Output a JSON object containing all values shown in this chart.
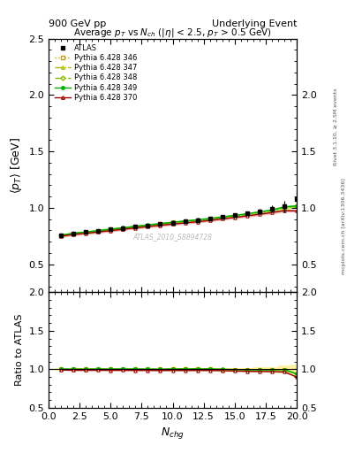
{
  "title_left": "900 GeV pp",
  "title_right": "Underlying Event",
  "main_title": "Average $p_T$ vs $N_{ch}$ ($|\\eta|$ < 2.5, $p_T$ > 0.5 GeV)",
  "xlabel": "$N_{chg}$",
  "ylabel_main": "$\\langle p_T \\rangle$ [GeV]",
  "ylabel_ratio": "Ratio to ATLAS",
  "watermark": "ATLAS_2010_S8894728",
  "right_label1": "Rivet 3.1.10, ≥ 2.5M events",
  "right_label2": "mcplots.cern.ch [arXiv:1306.3436]",
  "xlim": [
    0,
    20
  ],
  "ylim_main": [
    0.25,
    2.5
  ],
  "ylim_ratio": [
    0.5,
    2.0
  ],
  "yticks_main": [
    0.5,
    1.0,
    1.5,
    2.0,
    2.5
  ],
  "yticks_ratio": [
    0.5,
    1.0,
    1.5,
    2.0
  ],
  "nch": [
    1,
    2,
    3,
    4,
    5,
    6,
    7,
    8,
    9,
    10,
    11,
    12,
    13,
    14,
    15,
    16,
    17,
    18,
    19,
    20
  ],
  "atlas_data": [
    0.755,
    0.773,
    0.783,
    0.795,
    0.808,
    0.82,
    0.833,
    0.845,
    0.858,
    0.868,
    0.879,
    0.889,
    0.901,
    0.918,
    0.935,
    0.952,
    0.97,
    0.988,
    1.01,
    1.08
  ],
  "atlas_err": [
    0.012,
    0.009,
    0.008,
    0.007,
    0.007,
    0.007,
    0.007,
    0.007,
    0.008,
    0.008,
    0.009,
    0.01,
    0.011,
    0.013,
    0.015,
    0.018,
    0.023,
    0.03,
    0.05,
    0.07
  ],
  "py346": [
    0.755,
    0.773,
    0.783,
    0.796,
    0.808,
    0.821,
    0.833,
    0.845,
    0.857,
    0.869,
    0.88,
    0.891,
    0.902,
    0.916,
    0.929,
    0.943,
    0.96,
    0.976,
    1.002,
    1.012
  ],
  "py347": [
    0.753,
    0.771,
    0.781,
    0.794,
    0.806,
    0.819,
    0.831,
    0.843,
    0.855,
    0.867,
    0.878,
    0.889,
    0.9,
    0.914,
    0.927,
    0.941,
    0.957,
    0.974,
    1.0,
    1.01
  ],
  "py348": [
    0.754,
    0.772,
    0.782,
    0.795,
    0.807,
    0.82,
    0.832,
    0.844,
    0.856,
    0.868,
    0.879,
    0.89,
    0.901,
    0.915,
    0.928,
    0.942,
    0.958,
    0.975,
    1.001,
    1.011
  ],
  "py349": [
    0.756,
    0.774,
    0.784,
    0.797,
    0.81,
    0.822,
    0.835,
    0.847,
    0.859,
    0.871,
    0.882,
    0.893,
    0.904,
    0.918,
    0.932,
    0.946,
    0.963,
    0.98,
    1.007,
    1.017
  ],
  "py370": [
    0.748,
    0.763,
    0.773,
    0.785,
    0.797,
    0.809,
    0.821,
    0.833,
    0.844,
    0.855,
    0.865,
    0.876,
    0.887,
    0.901,
    0.914,
    0.927,
    0.942,
    0.957,
    0.975,
    0.972
  ],
  "color_346": "#c8a000",
  "color_347": "#aabb00",
  "color_348": "#88bb00",
  "color_349": "#00aa00",
  "color_370": "#990000",
  "shade_346": "#f5e070",
  "shade_347": "#ddee60",
  "shade_348": "#bbee44",
  "shade_349": "#88ee88",
  "shade_370": "#ee8888",
  "shade_atlas": "#ffee88"
}
